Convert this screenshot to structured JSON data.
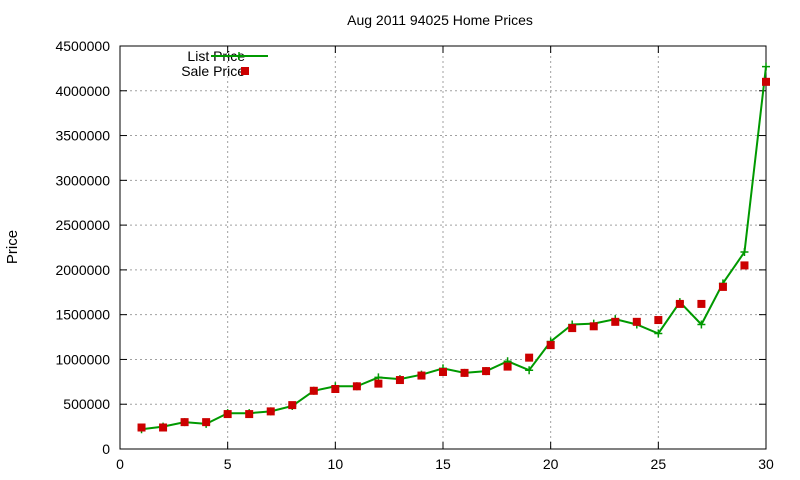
{
  "chart_data": {
    "type": "line",
    "title": "Aug 2011 94025 Home Prices",
    "xlabel": "",
    "ylabel": "Price",
    "xlim": [
      0,
      30
    ],
    "ylim": [
      0,
      4500000
    ],
    "grid": true,
    "legend_position": "top-left",
    "x_ticks": [
      "0",
      "5",
      "10",
      "15",
      "20",
      "25",
      "30"
    ],
    "y_ticks": [
      "0",
      "500000",
      "1000000",
      "1500000",
      "2000000",
      "2500000",
      "3000000",
      "3500000",
      "4000000",
      "4500000"
    ],
    "x": [
      1,
      2,
      3,
      4,
      5,
      6,
      7,
      8,
      9,
      10,
      11,
      12,
      13,
      14,
      15,
      16,
      17,
      18,
      19,
      20,
      21,
      22,
      23,
      24,
      25,
      26,
      27,
      28,
      29,
      30
    ],
    "series": [
      {
        "name": "List Price",
        "style": "line-plus",
        "color": "#009900",
        "values": [
          220000,
          250000,
          300000,
          280000,
          400000,
          400000,
          420000,
          480000,
          650000,
          700000,
          700000,
          800000,
          780000,
          830000,
          900000,
          850000,
          870000,
          980000,
          880000,
          1200000,
          1390000,
          1400000,
          1450000,
          1390000,
          1290000,
          1640000,
          1390000,
          1850000,
          2200000,
          4270000
        ]
      },
      {
        "name": "Sale Price",
        "style": "square",
        "color": "#cc0000",
        "values": [
          240000,
          240000,
          300000,
          300000,
          390000,
          390000,
          420000,
          490000,
          650000,
          670000,
          700000,
          730000,
          770000,
          820000,
          860000,
          850000,
          870000,
          920000,
          1020000,
          1160000,
          1350000,
          1370000,
          1420000,
          1420000,
          1440000,
          1620000,
          1620000,
          1810000,
          2050000,
          4100000
        ]
      }
    ]
  }
}
